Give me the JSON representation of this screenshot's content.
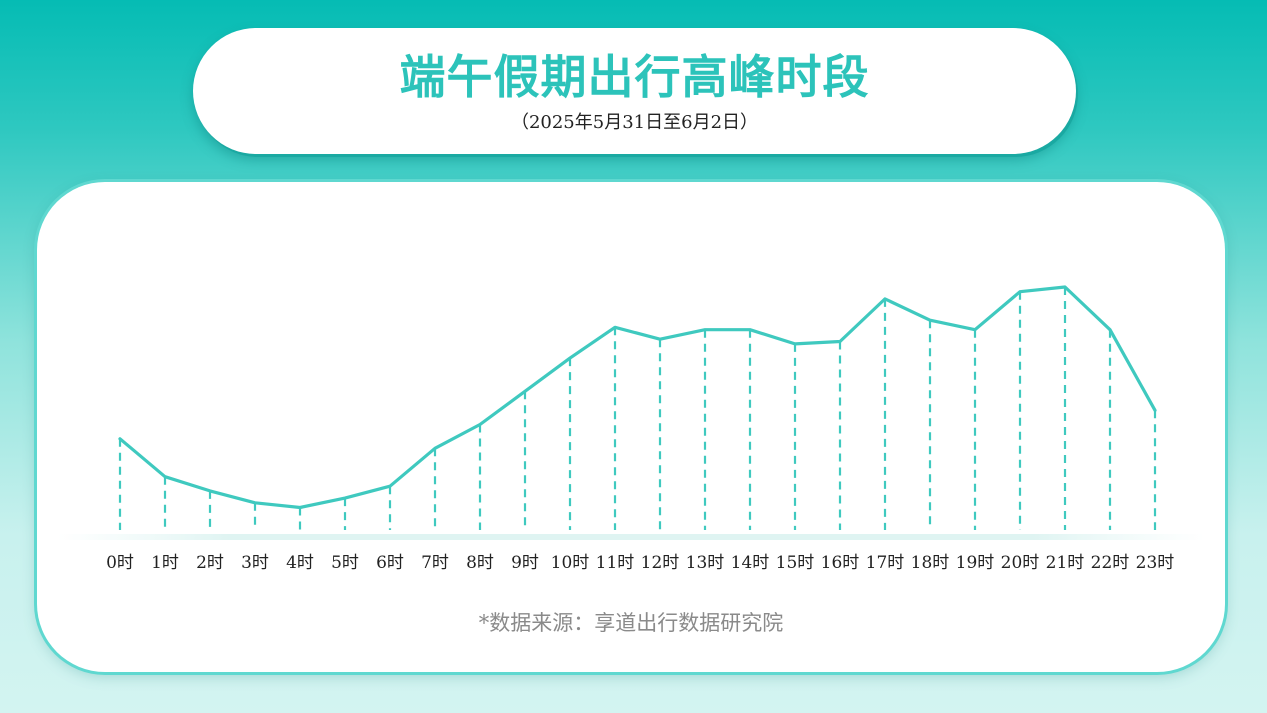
{
  "header": {
    "title": "端午假期出行高峰时段",
    "subtitle": "（2025年5月31日至6月2日）"
  },
  "footer": {
    "source": "*数据来源：享道出行数据研究院"
  },
  "colors": {
    "line": "#3fc9bf",
    "accent": "#2cc3ba"
  },
  "chart_data": {
    "type": "line",
    "title": "端午假期出行高峰时段",
    "subtitle": "（2025年5月31日至6月2日）",
    "xlabel": "",
    "ylabel": "",
    "grid": false,
    "legend": "none",
    "ylim": [
      0,
      100
    ],
    "categories": [
      "0时",
      "1时",
      "2时",
      "3时",
      "4时",
      "5时",
      "6时",
      "7时",
      "8时",
      "9时",
      "10时",
      "11时",
      "12时",
      "13时",
      "14时",
      "15时",
      "16时",
      "17时",
      "18时",
      "19时",
      "20时",
      "21时",
      "22时",
      "23时"
    ],
    "series": [
      {
        "values": [
          41,
          25,
          19,
          14,
          12,
          16,
          21,
          37,
          47,
          61,
          75,
          88,
          83,
          87,
          87,
          81,
          82,
          100,
          91,
          87,
          103,
          105,
          87,
          53
        ]
      }
    ]
  }
}
